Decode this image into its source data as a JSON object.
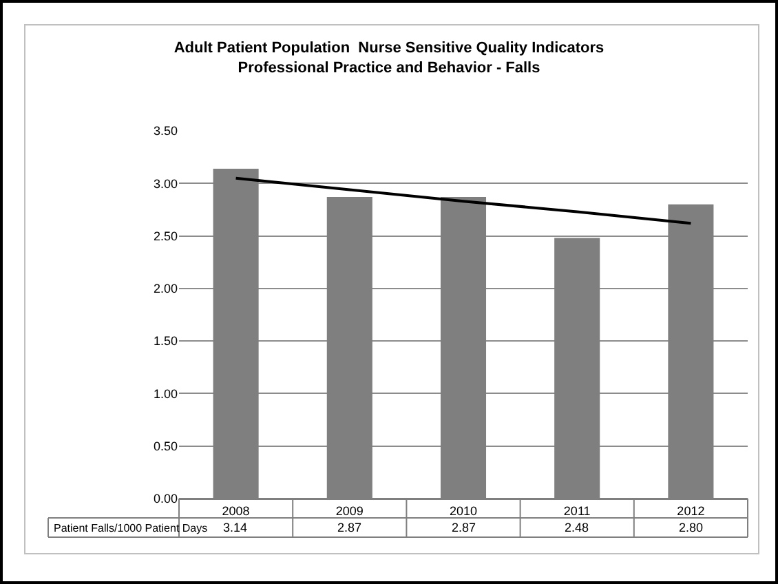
{
  "chart_data": {
    "type": "bar",
    "title": "Adult Patient Population  Nurse Sensitive Quality Indicators",
    "subtitle": "Professional Practice and Behavior - Falls",
    "categories": [
      "2008",
      "2009",
      "2010",
      "2011",
      "2012"
    ],
    "series": [
      {
        "name": "Patient Falls/1000 Patient Days",
        "color": "#7f7f7f",
        "values": [
          3.14,
          2.87,
          2.87,
          2.48,
          2.8
        ],
        "value_labels": [
          "3.14",
          "2.87",
          "2.87",
          "2.48",
          "2.80"
        ]
      },
      {
        "type": "line",
        "color": "#000000",
        "values": [
          3.05,
          2.94,
          2.83,
          2.73,
          2.62
        ]
      }
    ],
    "ylim": [
      0,
      3.5
    ],
    "yticks": [
      {
        "value": 0,
        "label": "0.00"
      },
      {
        "value": 0.5,
        "label": "0.50"
      },
      {
        "value": 1,
        "label": "1.00"
      },
      {
        "value": 1.5,
        "label": "1.50"
      },
      {
        "value": 2,
        "label": "2.00"
      },
      {
        "value": 2.5,
        "label": "2.50"
      },
      {
        "value": 3,
        "label": "3.00"
      },
      {
        "value": 3.5,
        "label": "3.50"
      }
    ],
    "grid": "y"
  }
}
